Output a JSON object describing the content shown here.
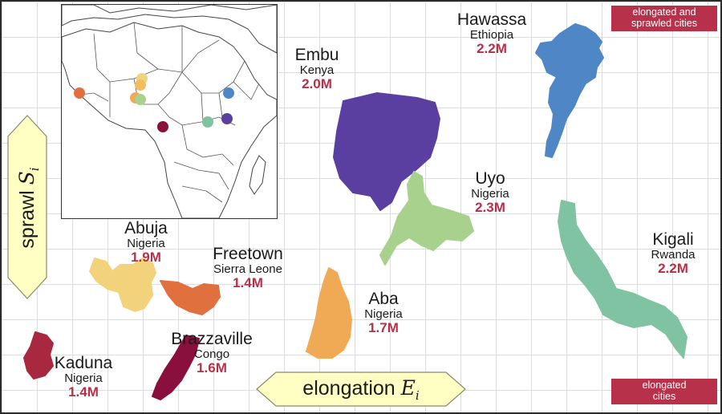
{
  "labels": {
    "sprawl": "sprawl",
    "sprawl_symbol": "S",
    "sprawl_sub": "i",
    "elongation": "elongation",
    "elongation_symbol": "E",
    "elongation_sub": "i",
    "tag_top": [
      "elongated and",
      "sprawled cities"
    ],
    "tag_bottom": [
      "elongated",
      "cities"
    ]
  },
  "cities": [
    {
      "name": "Hawassa",
      "country": "Ethiopia",
      "population": "2.2M",
      "color": "#4f86c6"
    },
    {
      "name": "Embu",
      "country": "Kenya",
      "population": "2.0M",
      "color": "#5a3fa0"
    },
    {
      "name": "Uyo",
      "country": "Nigeria",
      "population": "2.3M",
      "color": "#a9d18e"
    },
    {
      "name": "Kigali",
      "country": "Rwanda",
      "population": "2.2M",
      "color": "#7fc3a2"
    },
    {
      "name": "Abuja",
      "country": "Nigeria",
      "population": "1.9M",
      "color": "#f2d27a"
    },
    {
      "name": "Freetown",
      "country": "Sierra Leone",
      "population": "1.4M",
      "color": "#e0713f"
    },
    {
      "name": "Aba",
      "country": "Nigeria",
      "population": "1.7M",
      "color": "#f0aa55"
    },
    {
      "name": "Brazzaville",
      "country": "Congo",
      "population": "1.6M",
      "color": "#8a0f3c"
    },
    {
      "name": "Kaduna",
      "country": "Nigeria",
      "population": "1.4M",
      "color": "#a8283f"
    }
  ]
}
